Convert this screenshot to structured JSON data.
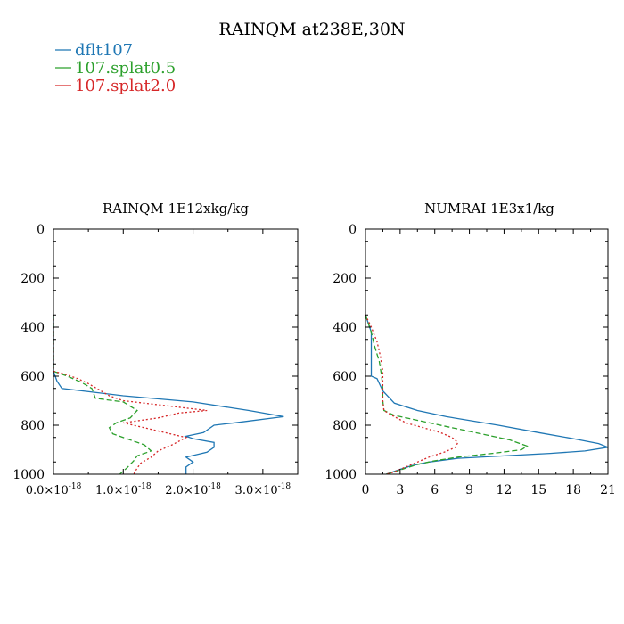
{
  "title": "RAINQM at238E,30N",
  "legend": [
    {
      "name": "dflt107",
      "color": "#1f77b4",
      "dash": "solid"
    },
    {
      "name": "107.splat0.5",
      "color": "#2ca02c",
      "dash": "dashed"
    },
    {
      "name": "107.splat2.0",
      "color": "#d62728",
      "dash": "dotted"
    }
  ],
  "chart_data": [
    {
      "type": "line",
      "title": "RAINQM  1E12xkg/kg",
      "xlim": [
        0.0,
        3.5
      ],
      "ylim": [
        1000,
        0
      ],
      "y_inverted": true,
      "xticks": [
        0.0,
        1.0,
        2.0,
        3.0
      ],
      "xtick_labels": [
        "0.0×10",
        "1.0×10",
        "2.0×10",
        "3.0×10"
      ],
      "xtick_exponent": "-18",
      "yticks": [
        0,
        200,
        400,
        600,
        800,
        1000
      ],
      "xunit_note": "values in units of 1E-18",
      "series": [
        {
          "name": "dflt107",
          "points": [
            [
              0,
              350
            ],
            [
              0,
              580
            ],
            [
              0.05,
              620
            ],
            [
              0.12,
              650
            ],
            [
              1.0,
              680
            ],
            [
              2.0,
              705
            ],
            [
              2.8,
              740
            ],
            [
              3.3,
              765
            ],
            [
              2.6,
              790
            ],
            [
              2.3,
              800
            ],
            [
              2.15,
              830
            ],
            [
              1.9,
              845
            ],
            [
              2.0,
              855
            ],
            [
              2.3,
              870
            ],
            [
              2.3,
              890
            ],
            [
              2.2,
              910
            ],
            [
              1.9,
              930
            ],
            [
              2.0,
              950
            ],
            [
              1.9,
              970
            ],
            [
              1.9,
              990
            ],
            [
              1.9,
              1000
            ]
          ]
        },
        {
          "name": "107.splat0.5",
          "points": [
            [
              0,
              350
            ],
            [
              0,
              580
            ],
            [
              0.2,
              600
            ],
            [
              0.4,
              625
            ],
            [
              0.55,
              650
            ],
            [
              0.6,
              690
            ],
            [
              1.0,
              705
            ],
            [
              1.2,
              740
            ],
            [
              1.1,
              770
            ],
            [
              0.9,
              790
            ],
            [
              0.8,
              810
            ],
            [
              0.85,
              835
            ],
            [
              1.1,
              860
            ],
            [
              1.3,
              880
            ],
            [
              1.4,
              905
            ],
            [
              1.2,
              925
            ],
            [
              1.15,
              945
            ],
            [
              1.1,
              960
            ],
            [
              1.05,
              975
            ],
            [
              0.95,
              1000
            ]
          ]
        },
        {
          "name": "107.splat2.0",
          "points": [
            [
              0,
              350
            ],
            [
              0,
              580
            ],
            [
              0.15,
              590
            ],
            [
              0.35,
              610
            ],
            [
              0.5,
              630
            ],
            [
              0.65,
              655
            ],
            [
              0.8,
              680
            ],
            [
              1.0,
              700
            ],
            [
              1.6,
              720
            ],
            [
              2.2,
              740
            ],
            [
              1.8,
              750
            ],
            [
              1.5,
              770
            ],
            [
              1.0,
              790
            ],
            [
              1.3,
              810
            ],
            [
              1.6,
              830
            ],
            [
              1.9,
              850
            ],
            [
              1.7,
              880
            ],
            [
              1.5,
              905
            ],
            [
              1.4,
              930
            ],
            [
              1.25,
              955
            ],
            [
              1.2,
              975
            ],
            [
              1.15,
              1000
            ]
          ]
        }
      ]
    },
    {
      "type": "line",
      "title": "NUMRAI  1E3x1/kg",
      "xlim": [
        0,
        21
      ],
      "ylim": [
        1000,
        0
      ],
      "y_inverted": true,
      "xticks": [
        0,
        3,
        6,
        9,
        12,
        15,
        18,
        21
      ],
      "yticks": [
        0,
        200,
        400,
        600,
        800,
        1000
      ],
      "series": [
        {
          "name": "dflt107",
          "points": [
            [
              0,
              350
            ],
            [
              0.5,
              420
            ],
            [
              0.5,
              600
            ],
            [
              1.0,
              610
            ],
            [
              1.5,
              660
            ],
            [
              2.5,
              710
            ],
            [
              4.5,
              740
            ],
            [
              7.0,
              765
            ],
            [
              11.5,
              800
            ],
            [
              15.0,
              830
            ],
            [
              18.0,
              855
            ],
            [
              20.2,
              875
            ],
            [
              21.0,
              890
            ],
            [
              19.0,
              905
            ],
            [
              16.0,
              915
            ],
            [
              12.0,
              925
            ],
            [
              8.0,
              935
            ],
            [
              5.5,
              950
            ],
            [
              4.0,
              965
            ],
            [
              3.0,
              980
            ],
            [
              1.8,
              1000
            ]
          ]
        },
        {
          "name": "107.splat0.5",
          "points": [
            [
              0,
              350
            ],
            [
              0.5,
              420
            ],
            [
              0.8,
              480
            ],
            [
              1.2,
              540
            ],
            [
              1.4,
              600
            ],
            [
              1.5,
              650
            ],
            [
              1.5,
              700
            ],
            [
              1.6,
              740
            ],
            [
              2.5,
              760
            ],
            [
              4.5,
              780
            ],
            [
              7.5,
              810
            ],
            [
              10.0,
              835
            ],
            [
              12.5,
              860
            ],
            [
              14.0,
              885
            ],
            [
              13.5,
              900
            ],
            [
              11.0,
              915
            ],
            [
              8.0,
              930
            ],
            [
              6.0,
              945
            ],
            [
              4.5,
              960
            ],
            [
              3.5,
              975
            ],
            [
              2.5,
              990
            ],
            [
              1.8,
              1000
            ]
          ]
        },
        {
          "name": "107.splat2.0",
          "points": [
            [
              0,
              350
            ],
            [
              0.5,
              400
            ],
            [
              1.0,
              460
            ],
            [
              1.3,
              520
            ],
            [
              1.5,
              580
            ],
            [
              1.5,
              640
            ],
            [
              1.5,
              700
            ],
            [
              1.6,
              740
            ],
            [
              2.3,
              760
            ],
            [
              3.5,
              790
            ],
            [
              5.0,
              810
            ],
            [
              6.5,
              830
            ],
            [
              7.5,
              850
            ],
            [
              8.0,
              870
            ],
            [
              7.8,
              890
            ],
            [
              6.8,
              910
            ],
            [
              5.5,
              930
            ],
            [
              4.5,
              950
            ],
            [
              3.5,
              970
            ],
            [
              2.5,
              990
            ],
            [
              1.8,
              1000
            ]
          ]
        }
      ]
    }
  ]
}
